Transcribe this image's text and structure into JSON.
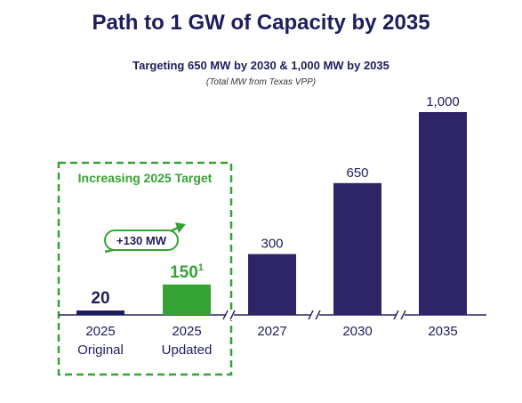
{
  "title": "Path to 1 GW of Capacity by 2035",
  "subtitle": "Targeting 650 MW by 2030 & 1,000 MW by 2035",
  "note": "(Total MW from Texas VPP)",
  "highlight_box_label": "Increasing 2025 Target",
  "increase_badge": "+130 MW",
  "colors": {
    "primary": "#2e2468",
    "highlight": "#35a334",
    "dark_navy": "#1f1d5c"
  },
  "chart_data": {
    "type": "bar",
    "title": "Path to 1 GW of Capacity by 2035",
    "subtitle": "Targeting 650 MW by 2030 & 1,000 MW by 2035",
    "ylabel": "",
    "xlabel": "",
    "ylim": [
      0,
      1000
    ],
    "grid": false,
    "categories": [
      {
        "line1": "2025",
        "line2": "Original"
      },
      {
        "line1": "2025",
        "line2": "Updated"
      },
      {
        "line1": "2027",
        "line2": ""
      },
      {
        "line1": "2030",
        "line2": ""
      },
      {
        "line1": "2035",
        "line2": ""
      }
    ],
    "values": [
      20,
      150,
      300,
      650,
      1000
    ],
    "value_labels": [
      "20",
      "150",
      "300",
      "650",
      "1,000"
    ],
    "value_label_superscripts": [
      "",
      "1",
      "",
      "",
      ""
    ],
    "bar_colors": [
      "#1f1d5c",
      "#35a334",
      "#2e2468",
      "#2e2468",
      "#2e2468"
    ]
  }
}
